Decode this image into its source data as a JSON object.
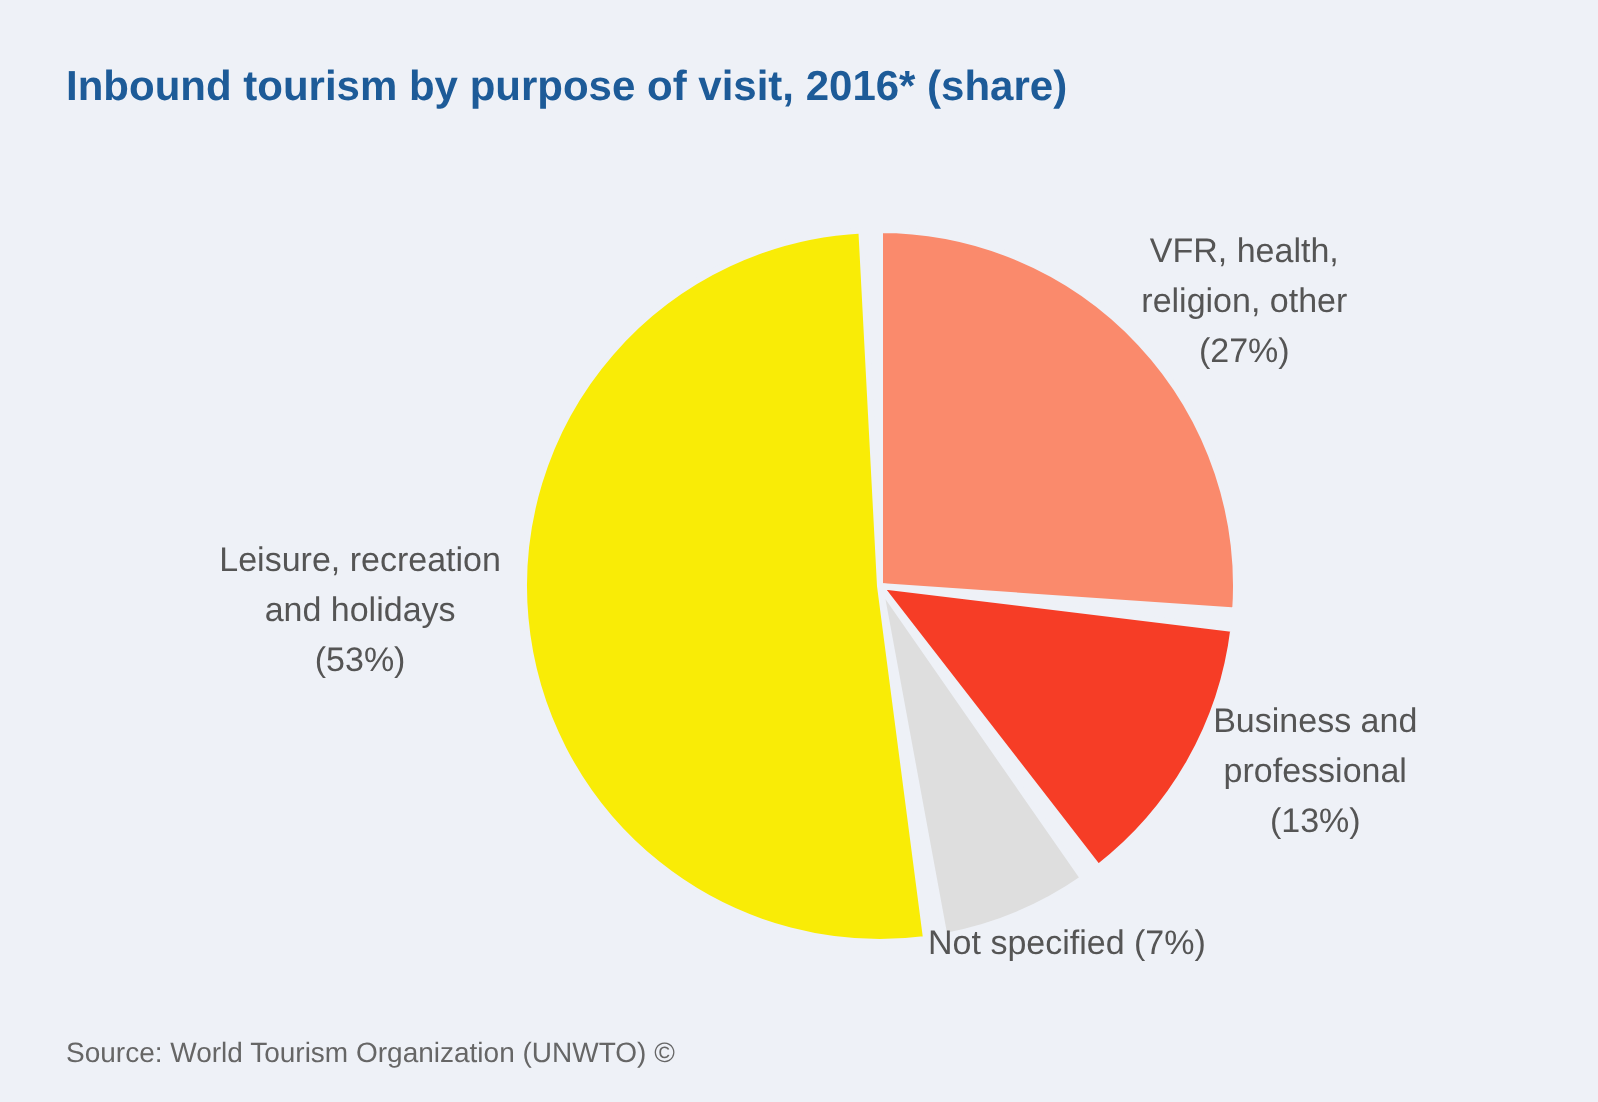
{
  "chart_data": {
    "type": "pie",
    "title": "Inbound tourism by purpose of visit, 2016* (share)",
    "categories": [
      "VFR, health, religion, other",
      "Business and professional",
      "Not specified",
      "Leisure, recreation and holidays"
    ],
    "values": [
      27,
      13,
      7,
      53
    ],
    "colors": [
      "#fa8a6c",
      "#f63d26",
      "#dedede",
      "#f9ec06"
    ],
    "value_labels": [
      "(27%)",
      "(13%)",
      "(7%)",
      "(53%)"
    ],
    "annotations": [
      "Source: World Tourism Organization (UNWTO) ©"
    ],
    "legend": false
  }
}
